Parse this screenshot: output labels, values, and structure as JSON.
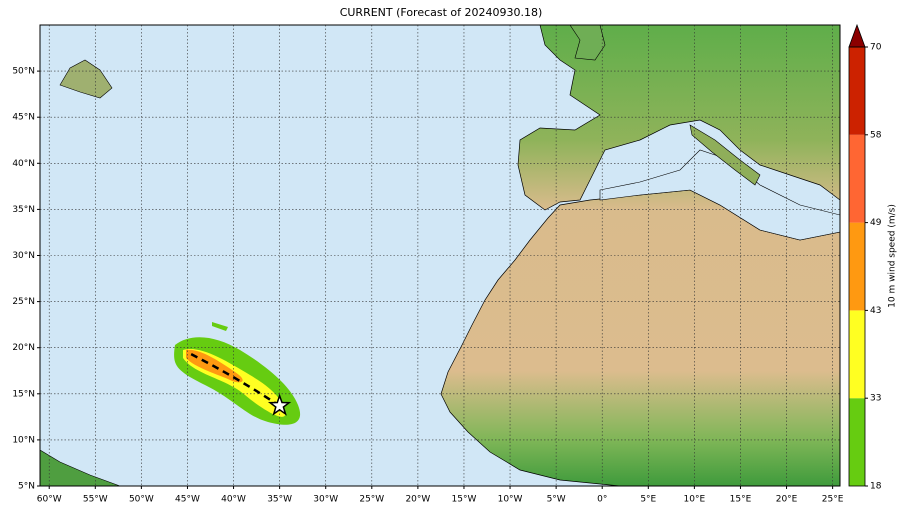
{
  "map": {
    "title": "CURRENT (Forecast of 20240930.18)",
    "xlim": [
      -61,
      25.8
    ],
    "ylim": [
      5,
      55
    ],
    "xticks": [
      {
        "value": -60,
        "label": "60°W"
      },
      {
        "value": -55,
        "label": "55°W"
      },
      {
        "value": -50,
        "label": "50°W"
      },
      {
        "value": -45,
        "label": "45°W"
      },
      {
        "value": -40,
        "label": "40°W"
      },
      {
        "value": -35,
        "label": "35°W"
      },
      {
        "value": -30,
        "label": "30°W"
      },
      {
        "value": -25,
        "label": "25°W"
      },
      {
        "value": -20,
        "label": "20°W"
      },
      {
        "value": -15,
        "label": "15°W"
      },
      {
        "value": -10,
        "label": "10°W"
      },
      {
        "value": -5,
        "label": "5°W"
      },
      {
        "value": 0,
        "label": "0°"
      },
      {
        "value": 5,
        "label": "5°E"
      },
      {
        "value": 10,
        "label": "10°E"
      },
      {
        "value": 15,
        "label": "15°E"
      },
      {
        "value": 20,
        "label": "20°E"
      },
      {
        "value": 25,
        "label": "25°E"
      }
    ],
    "yticks": [
      {
        "value": 5,
        "label": "5°N"
      },
      {
        "value": 10,
        "label": "10°N"
      },
      {
        "value": 15,
        "label": "15°N"
      },
      {
        "value": 20,
        "label": "20°N"
      },
      {
        "value": 25,
        "label": "25°N"
      },
      {
        "value": 30,
        "label": "30°N"
      },
      {
        "value": 35,
        "label": "35°N"
      },
      {
        "value": 40,
        "label": "40°N"
      },
      {
        "value": 45,
        "label": "45°N"
      },
      {
        "value": 50,
        "label": "50°N"
      }
    ],
    "grid": true,
    "track": {
      "lon": [
        -44.6,
        -42.5,
        -40,
        -37.5,
        -35
      ],
      "lat": [
        19.3,
        18.2,
        16.8,
        15.3,
        13.7
      ]
    }
  },
  "colorbar": {
    "label": "10 m wind speed (m/s)",
    "ticks": [
      18,
      33,
      43,
      49,
      58,
      70
    ],
    "colors": [
      "#66cc11",
      "#ffff22",
      "#ff9911",
      "#ff6633",
      "#cc2200"
    ],
    "extend_color": "#8b0000"
  }
}
